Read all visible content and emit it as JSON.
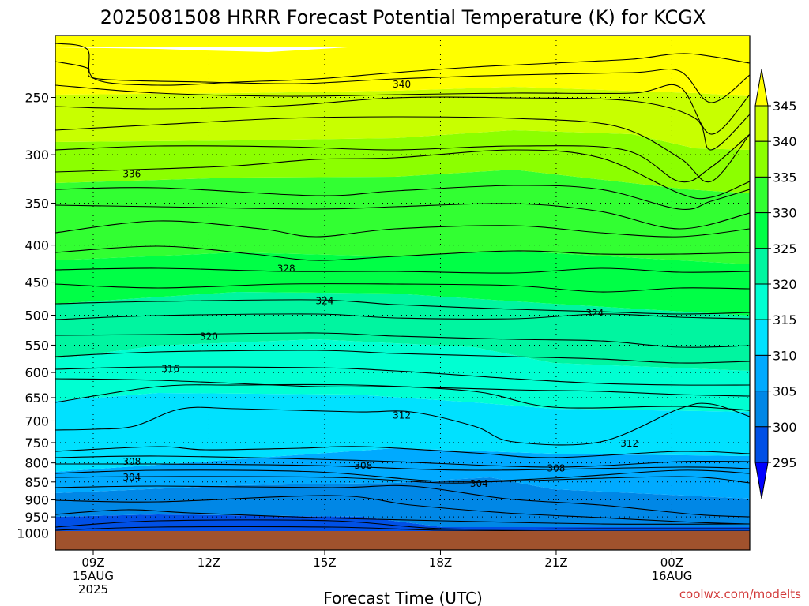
{
  "chart_data": {
    "type": "heatmap",
    "title": "2025081508 HRRR Forecast Potential Temperature (K) for KCGX",
    "xlabel": "Forecast Time (UTC)",
    "ylabel": "",
    "credit": "coolwx.com/modelts",
    "x_ticks": [
      {
        "hour": 9,
        "lines": [
          "09Z",
          "15AUG",
          "2025"
        ]
      },
      {
        "hour": 12,
        "lines": [
          "12Z"
        ]
      },
      {
        "hour": 15,
        "lines": [
          "15Z"
        ]
      },
      {
        "hour": 18,
        "lines": [
          "18Z"
        ]
      },
      {
        "hour": 21,
        "lines": [
          "21Z"
        ]
      },
      {
        "hour": 24,
        "lines": [
          "00Z",
          "16AUG"
        ]
      }
    ],
    "xlim": [
      8,
      26
    ],
    "y_ticks": [
      250,
      300,
      350,
      400,
      450,
      500,
      550,
      600,
      650,
      700,
      750,
      800,
      850,
      900,
      950,
      1000
    ],
    "ylim": [
      1000,
      200
    ],
    "y_scale": "log-pressure",
    "grid": true,
    "colorbar": {
      "labels": [
        "295",
        "300",
        "305",
        "310",
        "315",
        "320",
        "325",
        "330",
        "335",
        "340",
        "345"
      ],
      "colors": [
        "#0000ff",
        "#0050e6",
        "#0087e6",
        "#00aaff",
        "#00e1ff",
        "#00ffd2",
        "#00f5a0",
        "#00ff46",
        "#32ff32",
        "#8cff00",
        "#c8ff00",
        "#ffff00"
      ]
    },
    "contour_labels": [
      {
        "value": "340",
        "hour": 17.0,
        "pressure": 240
      },
      {
        "value": "336",
        "hour": 10.0,
        "pressure": 319
      },
      {
        "value": "328",
        "hour": 14.0,
        "pressure": 431
      },
      {
        "value": "324",
        "hour": 15.0,
        "pressure": 478
      },
      {
        "value": "324",
        "hour": 22.0,
        "pressure": 497
      },
      {
        "value": "320",
        "hour": 12.0,
        "pressure": 535
      },
      {
        "value": "316",
        "hour": 11.0,
        "pressure": 593
      },
      {
        "value": "312",
        "hour": 17.0,
        "pressure": 688
      },
      {
        "value": "312",
        "hour": 22.9,
        "pressure": 752
      },
      {
        "value": "308",
        "hour": 10.0,
        "pressure": 797
      },
      {
        "value": "308",
        "hour": 16.0,
        "pressure": 807
      },
      {
        "value": "308",
        "hour": 21.0,
        "pressure": 814
      },
      {
        "value": "304",
        "hour": 10.0,
        "pressure": 838
      },
      {
        "value": "304",
        "hour": 19.0,
        "pressure": 855
      }
    ]
  }
}
